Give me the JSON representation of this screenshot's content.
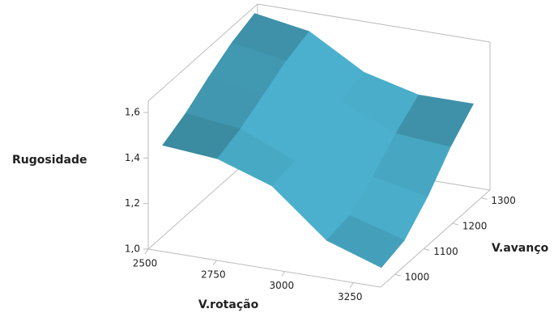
{
  "chart_data": {
    "type": "surface",
    "x_label": "V.rotação",
    "y_label": "V.avanço",
    "z_label": "Rugosidade",
    "x": [
      2500,
      2700,
      2900,
      3100,
      3300
    ],
    "y": [
      1000,
      1080,
      1160,
      1240,
      1320
    ],
    "z": [
      [
        1.4,
        1.38,
        1.3,
        1.1,
        1.02
      ],
      [
        1.45,
        1.42,
        1.32,
        1.12,
        1.05
      ],
      [
        1.52,
        1.48,
        1.36,
        1.2,
        1.15
      ],
      [
        1.58,
        1.54,
        1.4,
        1.3,
        1.28
      ],
      [
        1.62,
        1.58,
        1.44,
        1.38,
        1.38
      ]
    ],
    "xlim": [
      2500,
      3350
    ],
    "ylim": [
      950,
      1330
    ],
    "zlim": [
      1.0,
      1.65
    ],
    "xticks": [
      2500,
      2750,
      3000,
      3250
    ],
    "yticks": [
      1000,
      1100,
      1200,
      1300
    ],
    "zticks": [
      {
        "value": 1.0,
        "label": "1,0"
      },
      {
        "value": 1.2,
        "label": "1,2"
      },
      {
        "value": 1.4,
        "label": "1,4"
      },
      {
        "value": 1.6,
        "label": "1,6"
      }
    ],
    "color": "#2f6e80"
  }
}
